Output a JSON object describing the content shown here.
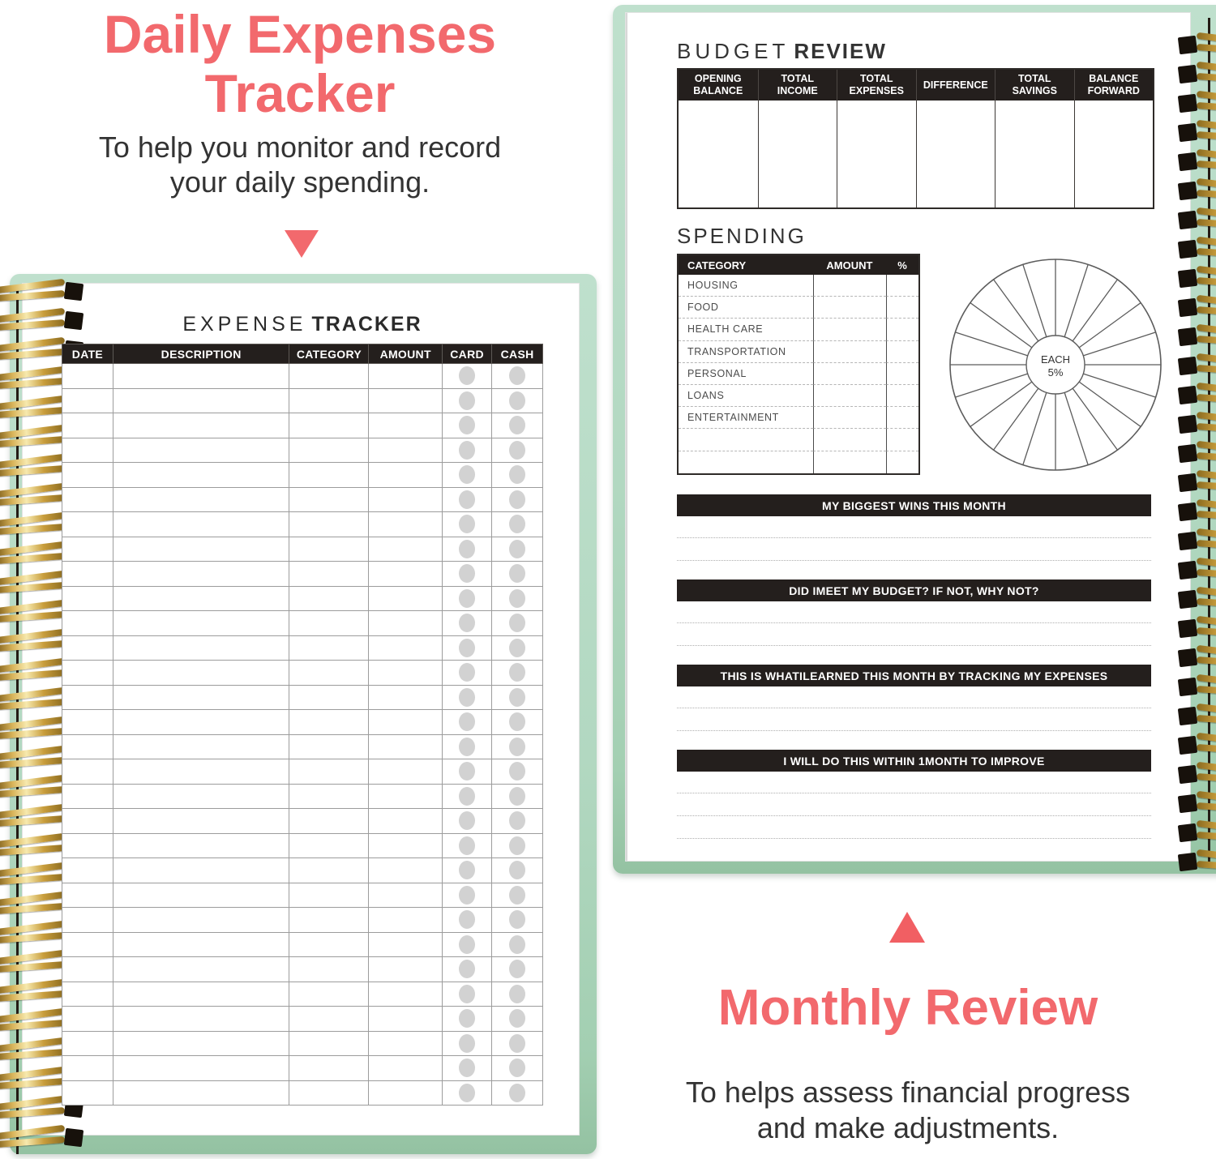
{
  "colors": {
    "coral": "#F2696D",
    "mint": "#B9DCC8",
    "mint_deep": "#9FC9AC",
    "ink": "#241F1D",
    "dot": "#D2D2D2",
    "gold": "#D8B455"
  },
  "intro": {
    "title_line1": "Daily Expenses",
    "title_line2": "Tracker",
    "subtitle_line1": "To help you monitor and record",
    "subtitle_line2": "your daily spending."
  },
  "expense_tracker": {
    "title_thin": "EXPENSE",
    "title_bold": "TRACKER",
    "columns": [
      "DATE",
      "DESCRIPTION",
      "CATEGORY",
      "AMOUNT",
      "CARD",
      "CASH"
    ],
    "rows": 30
  },
  "budget_review": {
    "title_thin": "BUDGET",
    "title_bold": "REVIEW",
    "columns": [
      "OPENING BALANCE",
      "TOTAL INCOME",
      "TOTAL EXPENSES",
      "DIFFERENCE",
      "TOTAL SAVINGS",
      "BALANCE FORWARD"
    ]
  },
  "spending": {
    "title": "SPENDING",
    "columns": [
      "CATEGORY",
      "AMOUNT",
      "%"
    ],
    "categories": [
      "HOUSING",
      "FOOD",
      "HEALTH CARE",
      "TRANSPORTATION",
      "PERSONAL",
      "LOANS",
      "ENTERTAINMENT",
      "",
      ""
    ],
    "wheel": {
      "label_line1": "EACH",
      "label_line2": "5%",
      "segments": 20
    }
  },
  "prompts": [
    {
      "label": "MY BIGGEST WINS THIS MONTH",
      "lines": 2
    },
    {
      "label": "DID IMEET MY BUDGET? IF NOT, WHY NOT?",
      "lines": 2
    },
    {
      "label": "THIS IS WHATILEARNED THIS MONTH BY TRACKING MY EXPENSES",
      "lines": 2
    },
    {
      "label": "I WILL DO THIS WITHIN 1MONTH TO IMPROVE",
      "lines": 3
    }
  ],
  "outro": {
    "title": "Monthly Review",
    "subtitle_line1": "To helps assess financial progress",
    "subtitle_line2": "and make adjustments."
  }
}
